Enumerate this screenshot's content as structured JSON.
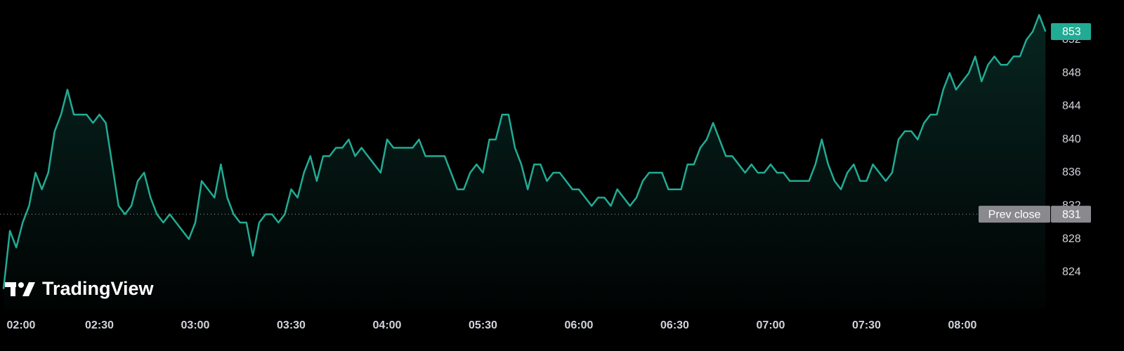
{
  "chart_data": {
    "type": "line",
    "watermark": "TradingView",
    "categories": [
      "02:00",
      null,
      null,
      null,
      null,
      null,
      null,
      null,
      null,
      null,
      null,
      null,
      null,
      null,
      null,
      "02:30",
      null,
      null,
      null,
      null,
      null,
      null,
      null,
      null,
      null,
      null,
      null,
      null,
      null,
      null,
      "03:00",
      null,
      null,
      null,
      null,
      null,
      null,
      null,
      null,
      null,
      null,
      null,
      null,
      null,
      null,
      "03:30",
      null,
      null,
      null,
      null,
      null,
      null,
      null,
      null,
      null,
      null,
      null,
      null,
      null,
      null,
      "04:00",
      null,
      null,
      null,
      null,
      null,
      null,
      null,
      null,
      null,
      null,
      null,
      null,
      null,
      null,
      "05:30",
      null,
      null,
      null,
      null,
      null,
      null,
      null,
      null,
      null,
      null,
      null,
      null,
      null,
      null,
      "06:00",
      null,
      null,
      null,
      null,
      null,
      null,
      null,
      null,
      null,
      null,
      null,
      null,
      null,
      null,
      "06:30",
      null,
      null,
      null,
      null,
      null,
      null,
      null,
      null,
      null,
      null,
      null,
      null,
      null,
      null,
      "07:00",
      null,
      null,
      null,
      null,
      null,
      null,
      null,
      null,
      null,
      null,
      null,
      null,
      null,
      null,
      "07:30",
      null,
      null,
      null,
      null,
      null,
      null,
      null,
      null,
      null,
      null,
      null,
      null,
      null,
      null,
      "08:00",
      null,
      null,
      null,
      null,
      null,
      null,
      null,
      null,
      null,
      null,
      null,
      null,
      null
    ],
    "values": [
      822,
      829,
      827,
      830,
      832,
      836,
      834,
      836,
      841,
      843,
      846,
      843,
      843,
      843,
      842,
      843,
      842,
      837,
      832,
      831,
      832,
      835,
      836,
      833,
      831,
      830,
      831,
      830,
      829,
      828,
      830,
      835,
      834,
      833,
      837,
      833,
      831,
      830,
      830,
      826,
      830,
      831,
      831,
      830,
      831,
      834,
      833,
      836,
      838,
      835,
      838,
      838,
      839,
      839,
      840,
      838,
      839,
      838,
      837,
      836,
      840,
      839,
      839,
      839,
      839,
      840,
      838,
      838,
      838,
      838,
      836,
      834,
      834,
      836,
      837,
      836,
      840,
      840,
      843,
      843,
      839,
      837,
      834,
      837,
      837,
      835,
      836,
      836,
      835,
      834,
      834,
      833,
      832,
      833,
      833,
      832,
      834,
      833,
      832,
      833,
      835,
      836,
      836,
      836,
      834,
      834,
      834,
      837,
      837,
      839,
      840,
      842,
      840,
      838,
      838,
      837,
      836,
      837,
      836,
      836,
      837,
      836,
      836,
      835,
      835,
      835,
      835,
      837,
      840,
      837,
      835,
      834,
      836,
      837,
      835,
      835,
      837,
      836,
      835,
      836,
      840,
      841,
      841,
      840,
      842,
      843,
      843,
      846,
      848,
      846,
      847,
      848,
      850,
      847,
      849,
      850,
      849,
      849,
      850,
      850,
      852,
      853,
      855,
      853
    ],
    "color": "#22ab94",
    "ylim": [
      819.6,
      856.8
    ],
    "yticks": [
      824,
      828,
      832,
      836,
      840,
      844,
      848,
      852
    ],
    "prev_close": {
      "label": "Prev close",
      "value": 831
    }
  }
}
